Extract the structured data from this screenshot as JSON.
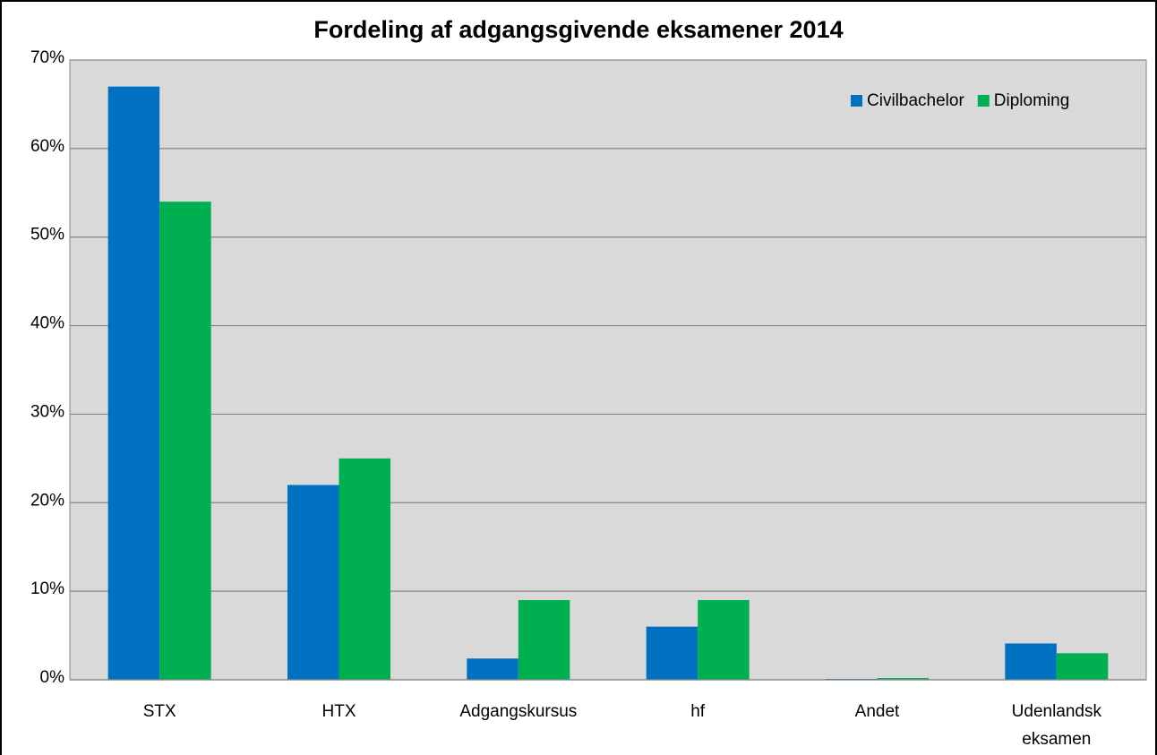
{
  "chart_data": {
    "type": "bar",
    "title": "Fordeling af adgangsgivende eksamener 2014",
    "categories": [
      "STX",
      "HTX",
      "Adgangskursus",
      "hf",
      "Andet",
      "Udenlandsk eksamen"
    ],
    "series": [
      {
        "name": "Civilbachelor",
        "color": "#0070c0",
        "values": [
          67,
          22,
          2.4,
          6,
          0.1,
          4.1
        ]
      },
      {
        "name": "Diploming",
        "color": "#00b050",
        "values": [
          54,
          25,
          9,
          9,
          0.2,
          3
        ]
      }
    ],
    "ylim": [
      0,
      70
    ],
    "yticks": [
      {
        "value": 0,
        "label": "0%"
      },
      {
        "value": 10,
        "label": "10%"
      },
      {
        "value": 20,
        "label": "20%"
      },
      {
        "value": 30,
        "label": "30%"
      },
      {
        "value": 40,
        "label": "40%"
      },
      {
        "value": 50,
        "label": "50%"
      },
      {
        "value": 60,
        "label": "60%"
      },
      {
        "value": 70,
        "label": "70%"
      }
    ],
    "grid": true,
    "legend": "top-right"
  }
}
